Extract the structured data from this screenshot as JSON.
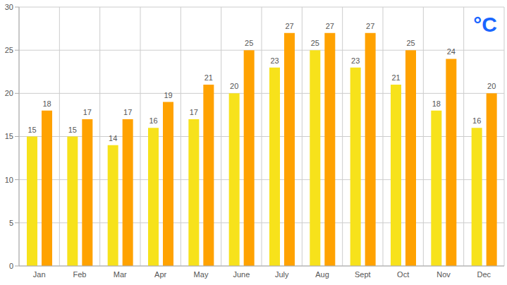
{
  "chart_data": {
    "type": "bar",
    "annotations": [
      "°C"
    ],
    "categories": [
      "Jan",
      "Feb",
      "Mar",
      "Apr",
      "May",
      "June",
      "July",
      "Aug",
      "Sept",
      "Oct",
      "Nov",
      "Dec"
    ],
    "series": [
      {
        "color": "#f7e21b",
        "values": [
          15,
          15,
          14,
          16,
          17,
          20,
          23,
          25,
          23,
          21,
          18,
          16
        ]
      },
      {
        "color": "#ffa200",
        "values": [
          18,
          17,
          17,
          19,
          21,
          25,
          27,
          27,
          27,
          25,
          24,
          20
        ]
      }
    ],
    "ylim": [
      0,
      30
    ],
    "yticks": [
      0,
      5,
      10,
      15,
      20,
      25,
      30
    ],
    "grid": true,
    "data_labels": true
  }
}
